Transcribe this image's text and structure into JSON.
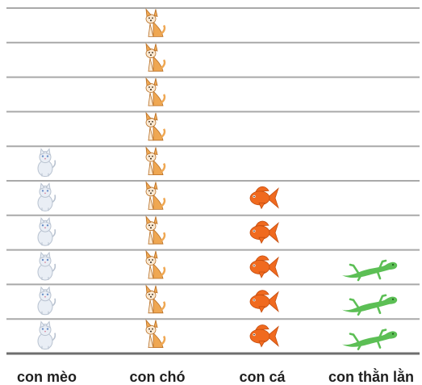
{
  "chart_data": {
    "type": "pictograph",
    "title": "",
    "xlabel": "",
    "ylabel": "",
    "categories": [
      "con mèo",
      "con chó",
      "con cá",
      "con thằn lằn"
    ],
    "values": [
      6,
      10,
      5,
      3
    ],
    "icons": [
      "cat-icon",
      "dog-icon",
      "fish-icon",
      "lizard-icon"
    ],
    "ylim": [
      0,
      10
    ],
    "grid": true,
    "colors": {
      "gridline": "#a9a9a9",
      "baseline": "#6e6e6e",
      "cat": "#e9eef5",
      "dog": "#efa752",
      "fish": "#f06a1f",
      "lizard": "#5cbf55"
    }
  }
}
